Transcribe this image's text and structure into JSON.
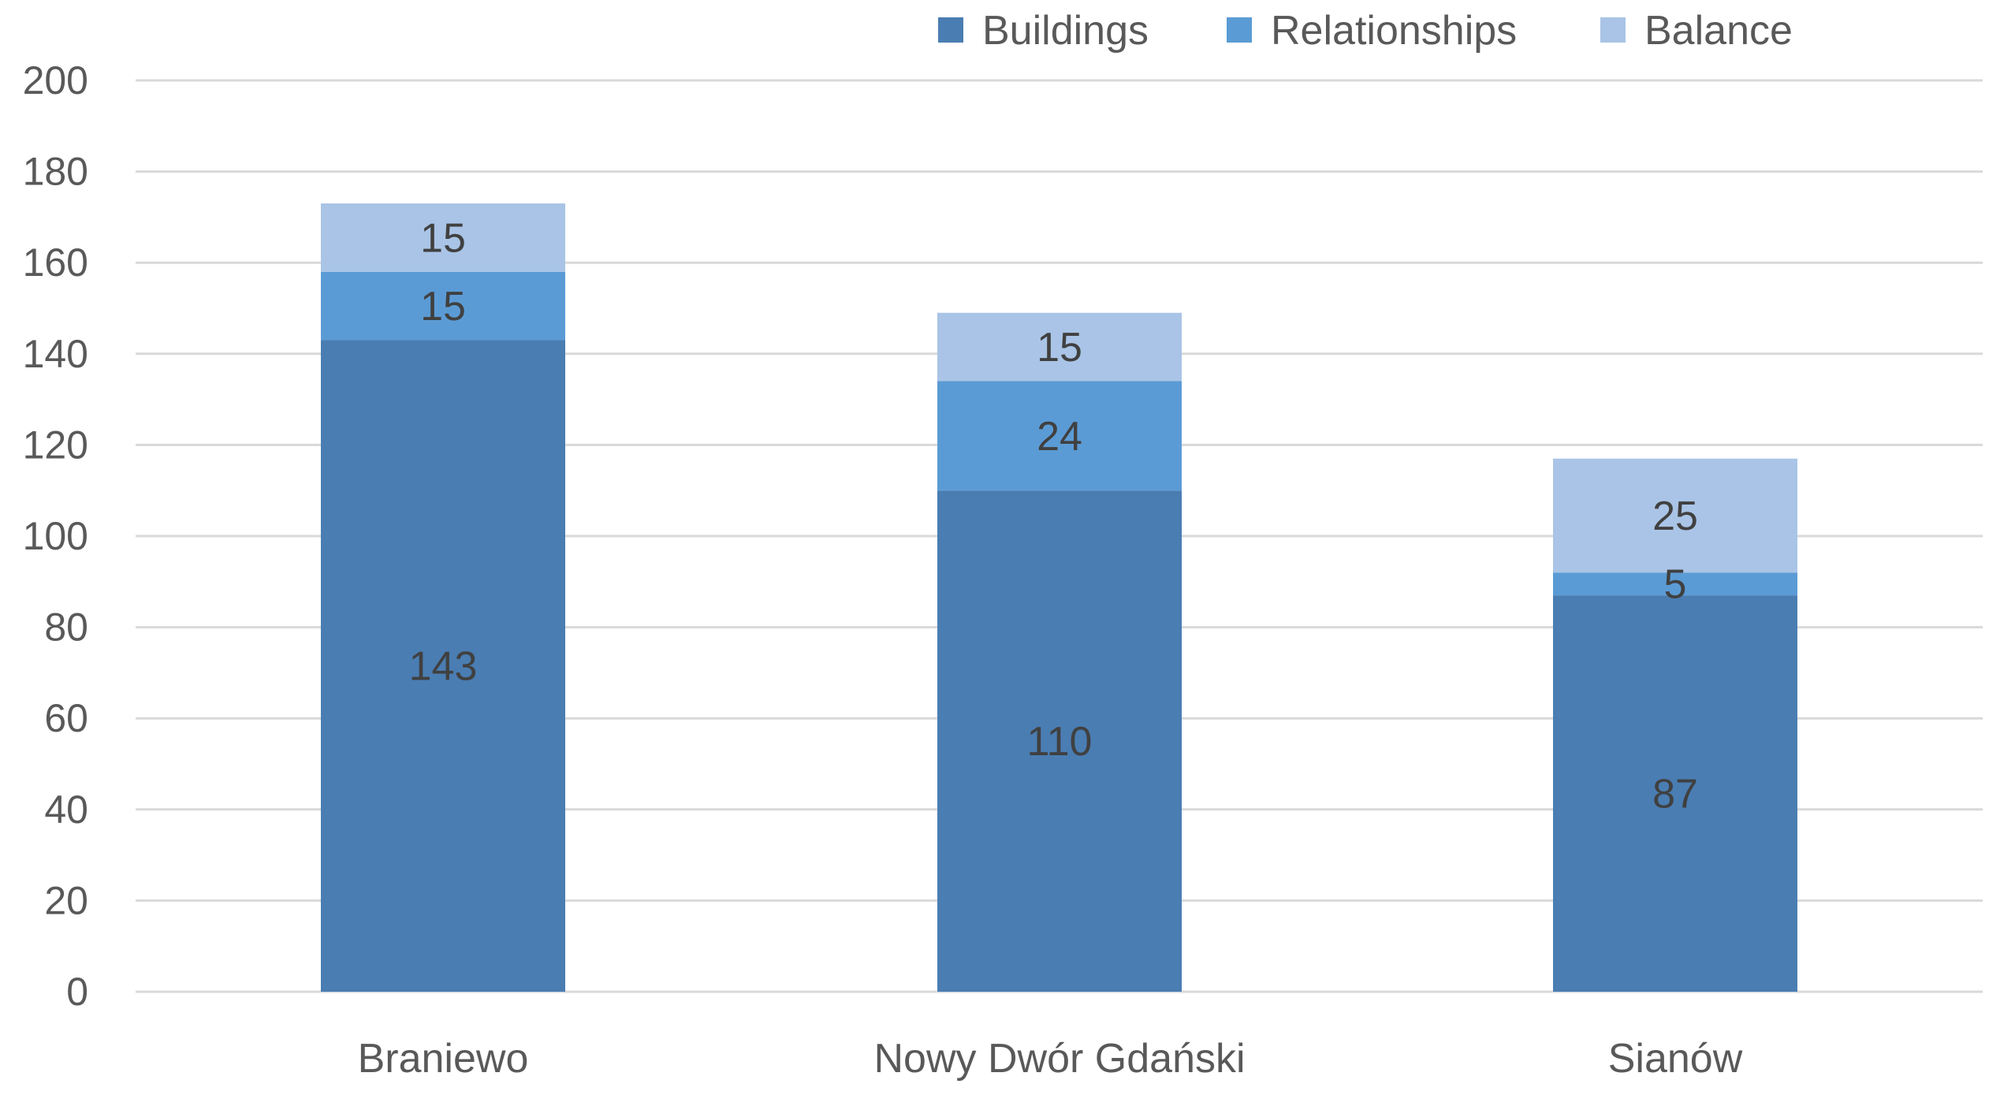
{
  "chart_data": {
    "type": "bar",
    "stacked": true,
    "categories": [
      "Braniewo",
      "Nowy Dwór Gdański",
      "Sianów"
    ],
    "series": [
      {
        "name": "Buildings",
        "values": [
          143,
          110,
          87
        ],
        "color": "#4a7db2"
      },
      {
        "name": "Relationships",
        "values": [
          15,
          24,
          5
        ],
        "color": "#5b9bd5"
      },
      {
        "name": "Balance",
        "values": [
          15,
          15,
          25
        ],
        "color": "#a9c4e6"
      }
    ],
    "data_labels": true,
    "ylim": [
      0,
      200
    ],
    "yticks": [
      0,
      20,
      40,
      60,
      80,
      100,
      120,
      140,
      160,
      180,
      200
    ],
    "grid": true,
    "legend": "top-right",
    "colors": {
      "gridline": "#d9d9d9",
      "axis_text": "#595959",
      "label_text": "#404040"
    }
  }
}
